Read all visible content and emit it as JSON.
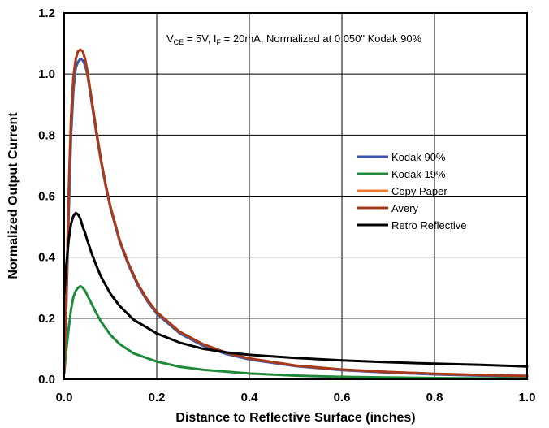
{
  "chart_data": {
    "type": "line",
    "xlabel": "Distance to Reflective Surface (inches)",
    "ylabel": "Normalized Output Current",
    "xlim": [
      0.0,
      1.0
    ],
    "ylim": [
      0.0,
      1.2
    ],
    "xticks": [
      "0.0",
      "0.2",
      "0.4",
      "0.6",
      "0.8",
      "1.0"
    ],
    "yticks": [
      "0.0",
      "0.2",
      "0.4",
      "0.6",
      "0.8",
      "1.0",
      "1.2"
    ],
    "grid": true,
    "legend_position": "right",
    "annotation": {
      "p1": "V",
      "s1": "CE",
      "p2": " = 5V, I",
      "s2": "F",
      "p3": " = 20mA, Normalized at 0.050\" Kodak 90%"
    },
    "series": [
      {
        "name": "Kodak 90%",
        "color": "#3b55a8",
        "x": [
          0,
          0.005,
          0.01,
          0.015,
          0.02,
          0.025,
          0.03,
          0.035,
          0.04,
          0.045,
          0.05,
          0.06,
          0.07,
          0.08,
          0.09,
          0.1,
          0.12,
          0.14,
          0.16,
          0.18,
          0.2,
          0.25,
          0.3,
          0.35,
          0.4,
          0.5,
          0.6,
          0.7,
          0.8,
          0.9,
          1.0
        ],
        "y": [
          0.02,
          0.25,
          0.55,
          0.8,
          0.95,
          1.02,
          1.04,
          1.05,
          1.045,
          1.03,
          1.0,
          0.9,
          0.8,
          0.71,
          0.63,
          0.56,
          0.45,
          0.37,
          0.305,
          0.255,
          0.215,
          0.15,
          0.11,
          0.083,
          0.065,
          0.043,
          0.03,
          0.022,
          0.016,
          0.012,
          0.009
        ]
      },
      {
        "name": "Kodak 19%",
        "color": "#1f8a3c",
        "x": [
          0,
          0.005,
          0.01,
          0.015,
          0.02,
          0.025,
          0.03,
          0.035,
          0.04,
          0.045,
          0.05,
          0.06,
          0.07,
          0.08,
          0.1,
          0.12,
          0.15,
          0.2,
          0.25,
          0.3,
          0.4,
          0.5,
          0.6,
          0.7,
          0.8,
          0.9,
          1.0
        ],
        "y": [
          0.02,
          0.1,
          0.17,
          0.23,
          0.27,
          0.29,
          0.3,
          0.305,
          0.3,
          0.29,
          0.275,
          0.245,
          0.215,
          0.188,
          0.145,
          0.115,
          0.085,
          0.058,
          0.041,
          0.031,
          0.019,
          0.012,
          0.008,
          0.006,
          0.004,
          0.003,
          0.002
        ]
      },
      {
        "name": "Copy Paper",
        "color": "#f07b2c",
        "x": [
          0,
          0.005,
          0.01,
          0.015,
          0.02,
          0.025,
          0.03,
          0.035,
          0.04,
          0.045,
          0.05,
          0.06,
          0.07,
          0.08,
          0.09,
          0.1,
          0.12,
          0.14,
          0.16,
          0.18,
          0.2,
          0.25,
          0.3,
          0.35,
          0.4,
          0.5,
          0.6,
          0.7,
          0.8,
          0.9,
          1.0
        ],
        "y": [
          0.02,
          0.3,
          0.62,
          0.86,
          0.99,
          1.05,
          1.075,
          1.08,
          1.075,
          1.05,
          1.01,
          0.91,
          0.81,
          0.715,
          0.635,
          0.565,
          0.455,
          0.375,
          0.31,
          0.26,
          0.22,
          0.155,
          0.115,
          0.087,
          0.068,
          0.045,
          0.032,
          0.024,
          0.018,
          0.014,
          0.011
        ]
      },
      {
        "name": "Avery",
        "color": "#a63a1d",
        "x": [
          0,
          0.005,
          0.01,
          0.015,
          0.02,
          0.025,
          0.03,
          0.035,
          0.04,
          0.045,
          0.05,
          0.06,
          0.07,
          0.08,
          0.09,
          0.1,
          0.12,
          0.14,
          0.16,
          0.18,
          0.2,
          0.25,
          0.3,
          0.35,
          0.4,
          0.5,
          0.6,
          0.7,
          0.8,
          0.9,
          1.0
        ],
        "y": [
          0.02,
          0.3,
          0.62,
          0.86,
          0.99,
          1.05,
          1.075,
          1.08,
          1.075,
          1.05,
          1.01,
          0.91,
          0.81,
          0.715,
          0.635,
          0.565,
          0.455,
          0.375,
          0.31,
          0.26,
          0.22,
          0.155,
          0.115,
          0.087,
          0.068,
          0.045,
          0.032,
          0.024,
          0.018,
          0.014,
          0.011
        ]
      },
      {
        "name": "Retro Reflective",
        "color": "#000000",
        "x": [
          0,
          0.005,
          0.01,
          0.015,
          0.02,
          0.025,
          0.03,
          0.035,
          0.04,
          0.045,
          0.05,
          0.06,
          0.07,
          0.08,
          0.1,
          0.12,
          0.15,
          0.2,
          0.25,
          0.3,
          0.35,
          0.4,
          0.5,
          0.6,
          0.7,
          0.8,
          0.9,
          1.0
        ],
        "y": [
          0.28,
          0.38,
          0.46,
          0.51,
          0.535,
          0.545,
          0.54,
          0.525,
          0.5,
          0.48,
          0.455,
          0.41,
          0.37,
          0.335,
          0.28,
          0.24,
          0.195,
          0.15,
          0.12,
          0.1,
          0.088,
          0.08,
          0.07,
          0.062,
          0.056,
          0.051,
          0.047,
          0.042
        ]
      }
    ]
  }
}
